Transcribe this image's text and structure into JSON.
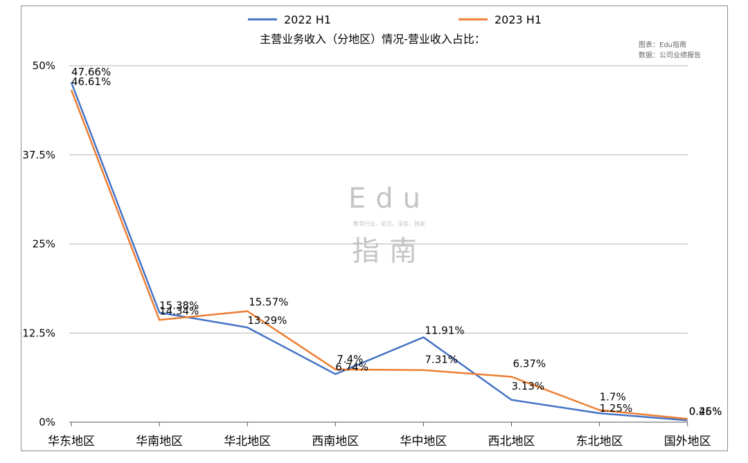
{
  "chart_data": {
    "type": "line",
    "title": "主营业务收入（分地区）情况-营业收入占比：",
    "categories": [
      "华东地区",
      "华南地区",
      "华北地区",
      "西南地区",
      "华中地区",
      "西北地区",
      "东北地区",
      "国外地区"
    ],
    "series": [
      {
        "name": "2022 H1",
        "color": "#4472c4",
        "values": [
          47.66,
          15.38,
          13.29,
          6.74,
          11.91,
          3.13,
          1.25,
          0.25
        ],
        "labels": [
          "47.66%",
          "15.38%",
          "13.29%",
          "6.74%",
          "11.91%",
          "3.13%",
          "1.25%",
          "0.25%"
        ]
      },
      {
        "name": "2023 H1",
        "color": "#ed7d31",
        "values": [
          46.61,
          14.34,
          15.57,
          7.4,
          7.31,
          6.37,
          1.7,
          0.46
        ],
        "labels": [
          "46.61%",
          "14.34%",
          "15.57%",
          "7.4%",
          "7.31%",
          "6.37%",
          "1.7%",
          "0.46%"
        ]
      }
    ],
    "y_ticks": [
      "0%",
      "12.5%",
      "25%",
      "37.5%",
      "50%"
    ],
    "ylim": [
      0,
      50
    ],
    "grid": true,
    "legend_position": "top"
  },
  "source": {
    "line1": "图表：Edu指南",
    "line2": "数据：公司业绩报告"
  },
  "watermark": {
    "top": "Edu",
    "tagline": "教育行业，前沿、深度、独家",
    "bottom": "指南"
  }
}
